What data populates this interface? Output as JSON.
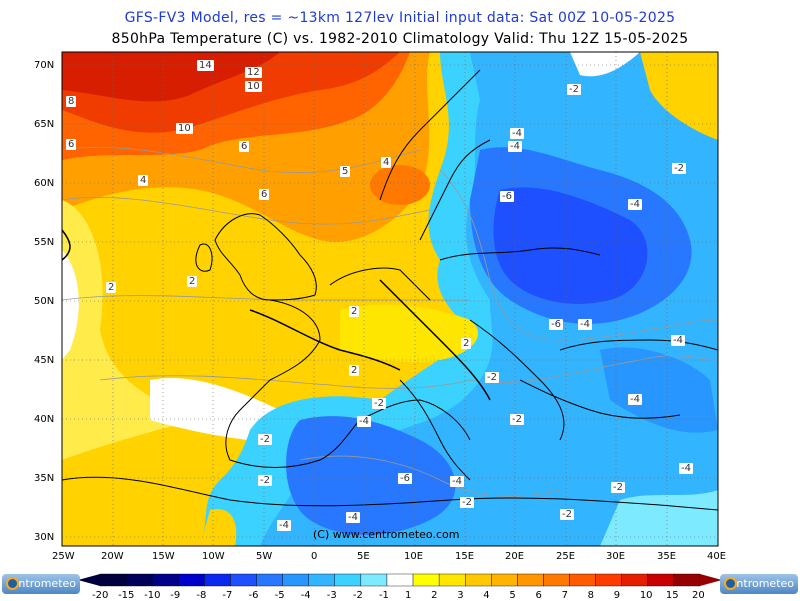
{
  "header": {
    "line1": "GFS-FV3 Model, res = ~13km 127lev    Initial input data: Sat 00Z 10-05-2025",
    "line2": "850hPa Temperature (C) vs. 1982-2010 Climatology  Valid: Thu 12Z 15-05-2025"
  },
  "map": {
    "lon_ticks": [
      "25W",
      "20W",
      "15W",
      "10W",
      "5W",
      "0",
      "5E",
      "10E",
      "15E",
      "20E",
      "25E",
      "30E",
      "35E",
      "40E"
    ],
    "lat_ticks": [
      "70N",
      "65N",
      "60N",
      "55N",
      "50N",
      "45N",
      "40N",
      "35N",
      "30N"
    ],
    "credit": "(C) www.centrometeo.com",
    "contour_labels": [
      "14",
      "12",
      "10",
      "10",
      "8",
      "6",
      "6",
      "6",
      "5",
      "4",
      "4",
      "2",
      "2",
      "2",
      "2",
      "2",
      "-2",
      "-2",
      "-2",
      "-2",
      "-2",
      "-2",
      "-2",
      "-2",
      "-2",
      "-4",
      "-4",
      "-4",
      "-4",
      "-4",
      "-4",
      "-4",
      "-4",
      "-4",
      "-4",
      "-6",
      "-6",
      "-6",
      "-2",
      "-4"
    ]
  },
  "colorbar": {
    "labels": [
      "-20",
      "-15",
      "-10",
      "-9",
      "-8",
      "-7",
      "-6",
      "-5",
      "-4",
      "-3",
      "-2",
      "-1",
      "1",
      "2",
      "3",
      "4",
      "5",
      "6",
      "7",
      "8",
      "9",
      "10",
      "15",
      "20"
    ],
    "colors": [
      "#000040",
      "#00005a",
      "#00008b",
      "#0000cd",
      "#0a28f0",
      "#1e50ff",
      "#2878ff",
      "#2896ff",
      "#32b4ff",
      "#3cd2ff",
      "#7deaff",
      "#ffffff",
      "#ffff00",
      "#ffe600",
      "#ffc800",
      "#ffb400",
      "#ff9600",
      "#ff7800",
      "#ff5a00",
      "#ff3c00",
      "#e61e00",
      "#c80000",
      "#960000"
    ]
  },
  "logo_text": "centrometeo"
}
